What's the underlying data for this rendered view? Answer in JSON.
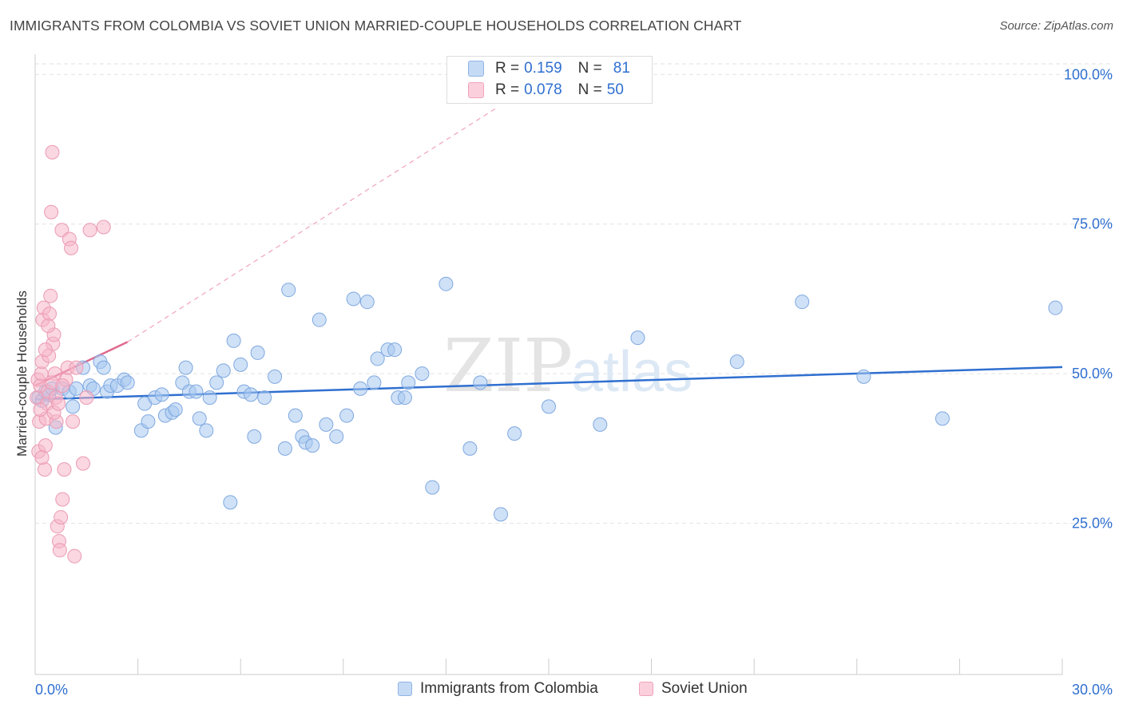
{
  "title": "IMMIGRANTS FROM COLOMBIA VS SOVIET UNION MARRIED-COUPLE HOUSEHOLDS CORRELATION CHART",
  "source": "Source: ZipAtlas.com",
  "watermark": {
    "zip": "ZIP",
    "atlas": "atlas"
  },
  "legend": {
    "rows": [
      {
        "r_label": "R =",
        "r_value": "0.159",
        "n_label": "N =",
        "n_value": "81",
        "color": "#a8c8f0"
      },
      {
        "r_label": "R =",
        "r_value": "0.078",
        "n_label": "N =",
        "n_value": "50",
        "color": "#f5b6c8"
      }
    ]
  },
  "bottom_legend": [
    {
      "label": "Immigrants from Colombia",
      "color": "#a8c8f0"
    },
    {
      "label": "Soviet Union",
      "color": "#f5b6c8"
    }
  ],
  "chart_data": {
    "type": "scatter",
    "title": "IMMIGRANTS FROM COLOMBIA VS SOVIET UNION MARRIED-COUPLE HOUSEHOLDS CORRELATION CHART",
    "ylabel": "Married-couple Households",
    "xlabel": "",
    "xlim": [
      0,
      30
    ],
    "ylim": [
      0,
      100
    ],
    "x_ticks": [
      "0.0%",
      "30.0%"
    ],
    "y_ticks": [
      {
        "value": 100,
        "label": "100.0%"
      },
      {
        "value": 75,
        "label": "75.0%"
      },
      {
        "value": 50,
        "label": "50.0%"
      },
      {
        "value": 25,
        "label": "25.0%"
      }
    ],
    "grid": true,
    "legend_position": "top-center",
    "colors": {
      "blue": "#2f6fd0",
      "pink": "#e06a8e",
      "blue_fill": "#a8c8f0",
      "pink_fill": "#f5b6c8"
    },
    "series": [
      {
        "name": "Immigrants from Colombia",
        "color": "#a8c8f0",
        "trend": {
          "x": [
            0,
            30
          ],
          "y": [
            45.7,
            51.1
          ],
          "dashed": false
        },
        "points": [
          [
            0.1,
            46
          ],
          [
            0.2,
            45.5
          ],
          [
            0.3,
            47
          ],
          [
            0.4,
            46.5
          ],
          [
            0.5,
            47.5
          ],
          [
            0.6,
            41
          ],
          [
            0.8,
            47.5
          ],
          [
            1.0,
            47
          ],
          [
            1.1,
            44.5
          ],
          [
            1.2,
            47.5
          ],
          [
            1.4,
            51
          ],
          [
            1.6,
            48
          ],
          [
            1.7,
            47.5
          ],
          [
            1.9,
            52
          ],
          [
            2.0,
            51
          ],
          [
            2.1,
            47
          ],
          [
            2.2,
            48
          ],
          [
            2.4,
            48
          ],
          [
            2.6,
            49
          ],
          [
            2.7,
            48.5
          ],
          [
            3.1,
            40.5
          ],
          [
            3.2,
            45
          ],
          [
            3.3,
            42
          ],
          [
            3.5,
            46
          ],
          [
            3.7,
            46.5
          ],
          [
            3.8,
            43
          ],
          [
            4.0,
            43.5
          ],
          [
            4.1,
            44
          ],
          [
            4.3,
            48.5
          ],
          [
            4.4,
            51
          ],
          [
            4.5,
            47
          ],
          [
            4.7,
            47
          ],
          [
            4.8,
            42.5
          ],
          [
            5.0,
            40.5
          ],
          [
            5.1,
            46
          ],
          [
            5.3,
            48.5
          ],
          [
            5.5,
            50.5
          ],
          [
            5.7,
            28.5
          ],
          [
            5.8,
            55.5
          ],
          [
            6.0,
            51.5
          ],
          [
            6.1,
            47
          ],
          [
            6.3,
            46.5
          ],
          [
            6.4,
            39.5
          ],
          [
            6.5,
            53.5
          ],
          [
            6.7,
            46
          ],
          [
            7.0,
            49.5
          ],
          [
            7.3,
            37.5
          ],
          [
            7.4,
            64
          ],
          [
            7.6,
            43
          ],
          [
            7.8,
            39.5
          ],
          [
            7.9,
            38.5
          ],
          [
            8.1,
            38
          ],
          [
            8.3,
            59
          ],
          [
            8.5,
            41.5
          ],
          [
            8.8,
            39.5
          ],
          [
            9.1,
            43
          ],
          [
            9.3,
            62.5
          ],
          [
            9.5,
            47.5
          ],
          [
            9.7,
            62
          ],
          [
            9.9,
            48.5
          ],
          [
            10.0,
            52.5
          ],
          [
            10.3,
            54
          ],
          [
            10.5,
            54
          ],
          [
            10.6,
            46
          ],
          [
            10.8,
            46
          ],
          [
            10.9,
            48.5
          ],
          [
            11.3,
            50
          ],
          [
            11.6,
            31
          ],
          [
            12.0,
            65
          ],
          [
            12.7,
            37.5
          ],
          [
            13.0,
            48.5
          ],
          [
            13.6,
            26.5
          ],
          [
            14.0,
            40
          ],
          [
            15.0,
            44.5
          ],
          [
            16.5,
            41.5
          ],
          [
            17.6,
            56
          ],
          [
            20.5,
            52
          ],
          [
            22.4,
            62
          ],
          [
            24.2,
            49.5
          ],
          [
            26.5,
            42.5
          ],
          [
            29.8,
            61
          ]
        ]
      },
      {
        "name": "Soviet Union",
        "color": "#f5b6c8",
        "trend": {
          "x": [
            0,
            2.7
          ],
          "y": [
            48,
            55.3
          ],
          "dashed": false
        },
        "trend_ext": {
          "x": [
            2.7,
            13.5
          ],
          "y": [
            55.3,
            94.5
          ],
          "dashed": true
        },
        "points": [
          [
            0.05,
            46
          ],
          [
            0.08,
            49
          ],
          [
            0.1,
            37
          ],
          [
            0.12,
            42
          ],
          [
            0.15,
            48
          ],
          [
            0.18,
            50
          ],
          [
            0.2,
            52
          ],
          [
            0.22,
            59
          ],
          [
            0.25,
            61
          ],
          [
            0.28,
            34
          ],
          [
            0.3,
            38
          ],
          [
            0.32,
            42.5
          ],
          [
            0.35,
            45
          ],
          [
            0.37,
            47
          ],
          [
            0.4,
            53
          ],
          [
            0.42,
            60
          ],
          [
            0.45,
            63
          ],
          [
            0.47,
            77
          ],
          [
            0.5,
            87
          ],
          [
            0.52,
            55
          ],
          [
            0.55,
            56.5
          ],
          [
            0.58,
            50
          ],
          [
            0.6,
            46
          ],
          [
            0.62,
            42
          ],
          [
            0.65,
            24.5
          ],
          [
            0.7,
            22
          ],
          [
            0.72,
            20.5
          ],
          [
            0.75,
            26
          ],
          [
            0.78,
            74
          ],
          [
            0.8,
            29
          ],
          [
            0.85,
            34
          ],
          [
            0.9,
            49
          ],
          [
            0.95,
            51
          ],
          [
            1.0,
            72.5
          ],
          [
            1.05,
            71
          ],
          [
            1.1,
            42
          ],
          [
            1.15,
            19.5
          ],
          [
            0.15,
            44
          ],
          [
            0.2,
            36
          ],
          [
            0.3,
            54
          ],
          [
            0.38,
            58
          ],
          [
            0.48,
            48.5
          ],
          [
            0.55,
            43.5
          ],
          [
            0.68,
            45
          ],
          [
            0.8,
            48
          ],
          [
            1.2,
            51
          ],
          [
            1.4,
            35
          ],
          [
            1.6,
            74
          ],
          [
            2.0,
            74.5
          ],
          [
            1.5,
            46
          ]
        ]
      }
    ]
  }
}
